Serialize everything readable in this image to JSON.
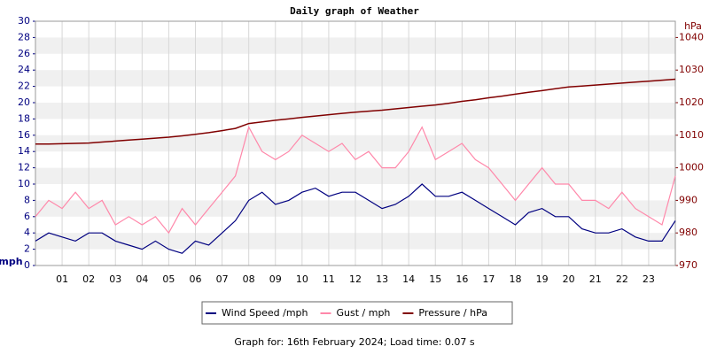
{
  "chart_data": {
    "type": "line",
    "title": "Daily graph of Weather",
    "y_label": "mph",
    "y2_label": "hPa",
    "x": [
      0,
      0.5,
      1,
      1.5,
      2,
      2.5,
      3,
      3.5,
      4,
      4.5,
      5,
      5.5,
      6,
      6.5,
      7,
      7.5,
      8,
      8.5,
      9,
      9.5,
      10,
      10.5,
      11,
      11.5,
      12,
      12.5,
      13,
      13.5,
      14,
      14.5,
      15,
      15.5,
      16,
      16.5,
      17,
      17.5,
      18,
      18.5,
      19,
      19.5,
      20,
      20.5,
      21,
      21.5,
      22,
      22.5,
      23,
      23.5,
      24
    ],
    "xlim": [
      0,
      24
    ],
    "xticks": [
      {
        "value": 1,
        "label": "01"
      },
      {
        "value": 2,
        "label": "02"
      },
      {
        "value": 3,
        "label": "03"
      },
      {
        "value": 4,
        "label": "04"
      },
      {
        "value": 5,
        "label": "05"
      },
      {
        "value": 6,
        "label": "06"
      },
      {
        "value": 7,
        "label": "07"
      },
      {
        "value": 8,
        "label": "08"
      },
      {
        "value": 9,
        "label": "09"
      },
      {
        "value": 10,
        "label": "10"
      },
      {
        "value": 11,
        "label": "11"
      },
      {
        "value": 12,
        "label": "12"
      },
      {
        "value": 13,
        "label": "13"
      },
      {
        "value": 14,
        "label": "14"
      },
      {
        "value": 15,
        "label": "15"
      },
      {
        "value": 16,
        "label": "16"
      },
      {
        "value": 17,
        "label": "17"
      },
      {
        "value": 18,
        "label": "18"
      },
      {
        "value": 19,
        "label": "19"
      },
      {
        "value": 20,
        "label": "20"
      },
      {
        "value": 21,
        "label": "21"
      },
      {
        "value": 22,
        "label": "22"
      },
      {
        "value": 23,
        "label": "23"
      }
    ],
    "ylim": [
      0,
      30
    ],
    "yticks": [
      0,
      2,
      4,
      6,
      8,
      10,
      12,
      14,
      16,
      18,
      20,
      22,
      24,
      26,
      28,
      30
    ],
    "y2lim": [
      970,
      1045
    ],
    "y2ticks": [
      970,
      980,
      990,
      1000,
      1010,
      1020,
      1030,
      1040
    ],
    "grid": true,
    "legend": "bottom",
    "series": [
      {
        "name": "Wind Speed /mph",
        "color": "#000080",
        "values": [
          3,
          4,
          3.5,
          3,
          4,
          4,
          3,
          2.5,
          2,
          3,
          2,
          1.5,
          3,
          2.5,
          4,
          5.5,
          8,
          9,
          7.5,
          8,
          9,
          9.5,
          8.5,
          9,
          9,
          8,
          7,
          7.5,
          8.5,
          10,
          8.5,
          8.5,
          9,
          8,
          7,
          6,
          5,
          6.5,
          7,
          6,
          6,
          4.5,
          4,
          4,
          4.5,
          3.5,
          3,
          3,
          5.5
        ]
      },
      {
        "name": "Gust / mph",
        "color": "#ff88aa",
        "values": [
          6,
          8,
          7,
          9,
          7,
          8,
          5,
          6,
          5,
          6,
          4,
          7,
          5,
          7,
          9,
          11,
          17,
          14,
          13,
          14,
          16,
          15,
          14,
          15,
          13,
          14,
          12,
          12,
          14,
          17,
          13,
          14,
          15,
          13,
          12,
          10,
          8,
          10,
          12,
          10,
          10,
          8,
          8,
          7,
          9,
          7,
          6,
          5,
          11
        ]
      },
      {
        "name": "Pressure / hPa",
        "color": "#800000",
        "axis": "y2",
        "values": [
          1007.3,
          1007.3,
          1007.4,
          1007.5,
          1007.6,
          1007.9,
          1008.2,
          1008.5,
          1008.8,
          1009.1,
          1009.4,
          1009.8,
          1010.3,
          1010.8,
          1011.4,
          1012.1,
          1013.6,
          1014.1,
          1014.6,
          1015,
          1015.5,
          1015.9,
          1016.3,
          1016.7,
          1017.1,
          1017.4,
          1017.7,
          1018.1,
          1018.5,
          1018.9,
          1019.3,
          1019.8,
          1020.4,
          1020.9,
          1021.5,
          1022,
          1022.6,
          1023.2,
          1023.7,
          1024.3,
          1024.8,
          1025.1,
          1025.4,
          1025.7,
          1026,
          1026.3,
          1026.6,
          1026.9,
          1027.2
        ]
      }
    ],
    "footer": "Graph for: 16th February 2024; Load time: 0.07 s"
  }
}
